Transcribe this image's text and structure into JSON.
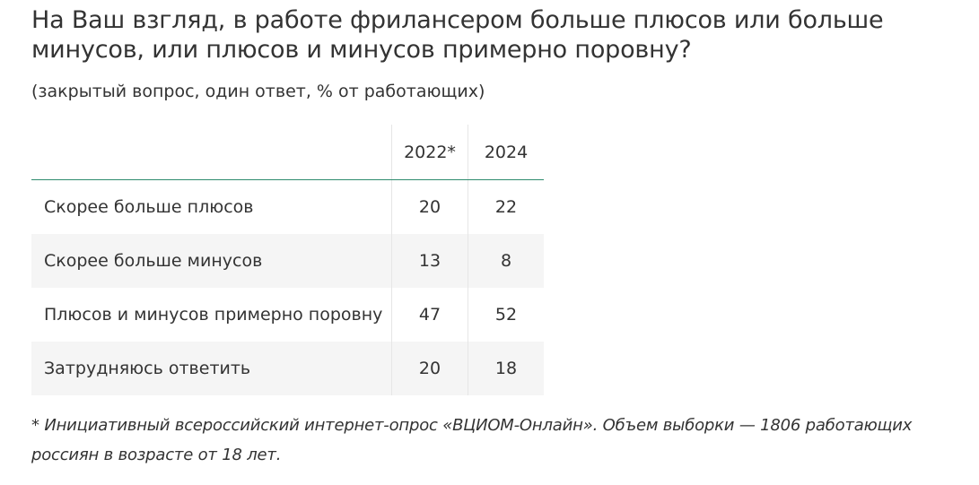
{
  "title": "На Ваш взгляд, в работе фрилансером больше плюсов или больше минусов, или плюсов и минусов примерно поровну?",
  "subtitle": "(закрытый вопрос, один ответ, % от работающих)",
  "table": {
    "headers": [
      "",
      "2022*",
      "2024"
    ],
    "rows": [
      {
        "label": "Скорее больше плюсов",
        "y2022": "20",
        "y2024": "22"
      },
      {
        "label": "Скорее больше минусов",
        "y2022": "13",
        "y2024": "8"
      },
      {
        "label": "Плюсов и минусов примерно поровну",
        "y2022": "47",
        "y2024": "52"
      },
      {
        "label": "Затрудняюсь ответить",
        "y2022": "20",
        "y2024": "18"
      }
    ]
  },
  "footnote": "* Инициативный всероссийский интернет-опрос «ВЦИОМ-Онлайн». Объем выборки — 1806 работающих россиян в возрасте от 18 лет.",
  "colors": {
    "header_rule": "#2e8b6e",
    "stripe": "#f5f5f5",
    "text": "#333333"
  }
}
